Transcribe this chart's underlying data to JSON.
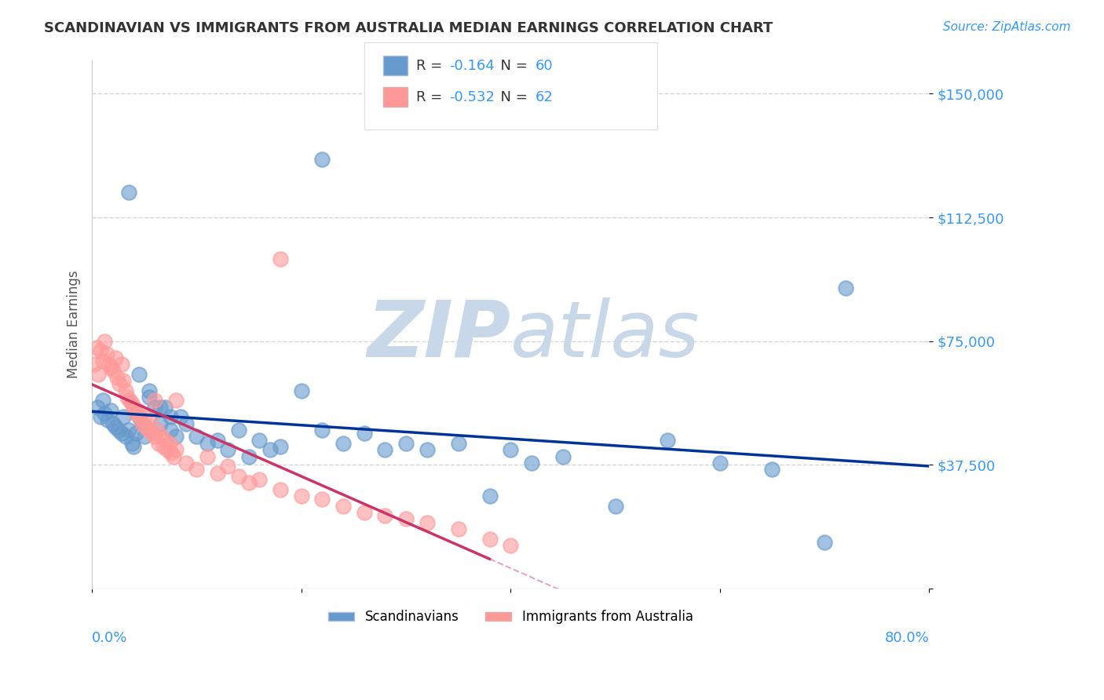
{
  "title": "SCANDINAVIAN VS IMMIGRANTS FROM AUSTRALIA MEDIAN EARNINGS CORRELATION CHART",
  "source": "Source: ZipAtlas.com",
  "ylabel": "Median Earnings",
  "xmin": 0.0,
  "xmax": 0.8,
  "ymin": 0,
  "ymax": 160000,
  "blue_R": -0.164,
  "blue_N": 60,
  "pink_R": -0.532,
  "pink_N": 62,
  "blue_color": "#6699CC",
  "pink_color": "#FF9999",
  "blue_line_color": "#003399",
  "pink_line_color": "#CC3366",
  "grid_color": "#CCCCCC",
  "watermark_zip_color": "#C8D8E8",
  "watermark_atlas_color": "#C8D8E8",
  "background_color": "#FFFFFF",
  "blue_scatter_x": [
    0.005,
    0.008,
    0.01,
    0.012,
    0.015,
    0.018,
    0.02,
    0.022,
    0.025,
    0.028,
    0.03,
    0.032,
    0.035,
    0.038,
    0.04,
    0.042,
    0.045,
    0.048,
    0.05,
    0.055,
    0.06,
    0.065,
    0.07,
    0.075,
    0.08,
    0.085,
    0.09,
    0.1,
    0.11,
    0.12,
    0.13,
    0.14,
    0.15,
    0.16,
    0.17,
    0.18,
    0.2,
    0.22,
    0.24,
    0.26,
    0.28,
    0.3,
    0.32,
    0.35,
    0.38,
    0.4,
    0.42,
    0.45,
    0.5,
    0.55,
    0.6,
    0.65,
    0.7,
    0.22,
    0.035,
    0.045,
    0.055,
    0.065,
    0.075,
    0.72
  ],
  "blue_scatter_y": [
    55000,
    52000,
    57000,
    53000,
    51000,
    54000,
    50000,
    49000,
    48000,
    47000,
    52000,
    46000,
    48000,
    44000,
    43000,
    47000,
    65000,
    50000,
    46000,
    60000,
    55000,
    50000,
    55000,
    48000,
    46000,
    52000,
    50000,
    46000,
    44000,
    45000,
    42000,
    48000,
    40000,
    45000,
    42000,
    43000,
    60000,
    48000,
    44000,
    47000,
    42000,
    44000,
    42000,
    44000,
    28000,
    42000,
    38000,
    40000,
    25000,
    45000,
    38000,
    36000,
    14000,
    130000,
    120000,
    52000,
    58000,
    55000,
    52000,
    91000
  ],
  "pink_scatter_x": [
    0.002,
    0.004,
    0.006,
    0.008,
    0.01,
    0.012,
    0.014,
    0.016,
    0.018,
    0.02,
    0.022,
    0.024,
    0.026,
    0.028,
    0.03,
    0.032,
    0.034,
    0.036,
    0.038,
    0.04,
    0.042,
    0.044,
    0.046,
    0.048,
    0.05,
    0.052,
    0.054,
    0.056,
    0.058,
    0.06,
    0.062,
    0.064,
    0.066,
    0.068,
    0.07,
    0.072,
    0.074,
    0.076,
    0.078,
    0.08,
    0.09,
    0.1,
    0.11,
    0.12,
    0.13,
    0.14,
    0.15,
    0.16,
    0.18,
    0.2,
    0.22,
    0.24,
    0.26,
    0.28,
    0.3,
    0.32,
    0.35,
    0.38,
    0.4,
    0.18,
    0.06,
    0.08
  ],
  "pink_scatter_y": [
    68000,
    73000,
    65000,
    72000,
    69000,
    75000,
    71000,
    68000,
    67000,
    66000,
    70000,
    64000,
    62000,
    68000,
    63000,
    60000,
    58000,
    57000,
    56000,
    55000,
    53000,
    54000,
    52000,
    50000,
    51000,
    49000,
    48000,
    52000,
    47000,
    46000,
    48000,
    44000,
    46000,
    43000,
    45000,
    42000,
    44000,
    41000,
    40000,
    42000,
    38000,
    36000,
    40000,
    35000,
    37000,
    34000,
    32000,
    33000,
    30000,
    28000,
    27000,
    25000,
    23000,
    22000,
    21000,
    20000,
    18000,
    15000,
    13000,
    100000,
    57000,
    57000
  ]
}
